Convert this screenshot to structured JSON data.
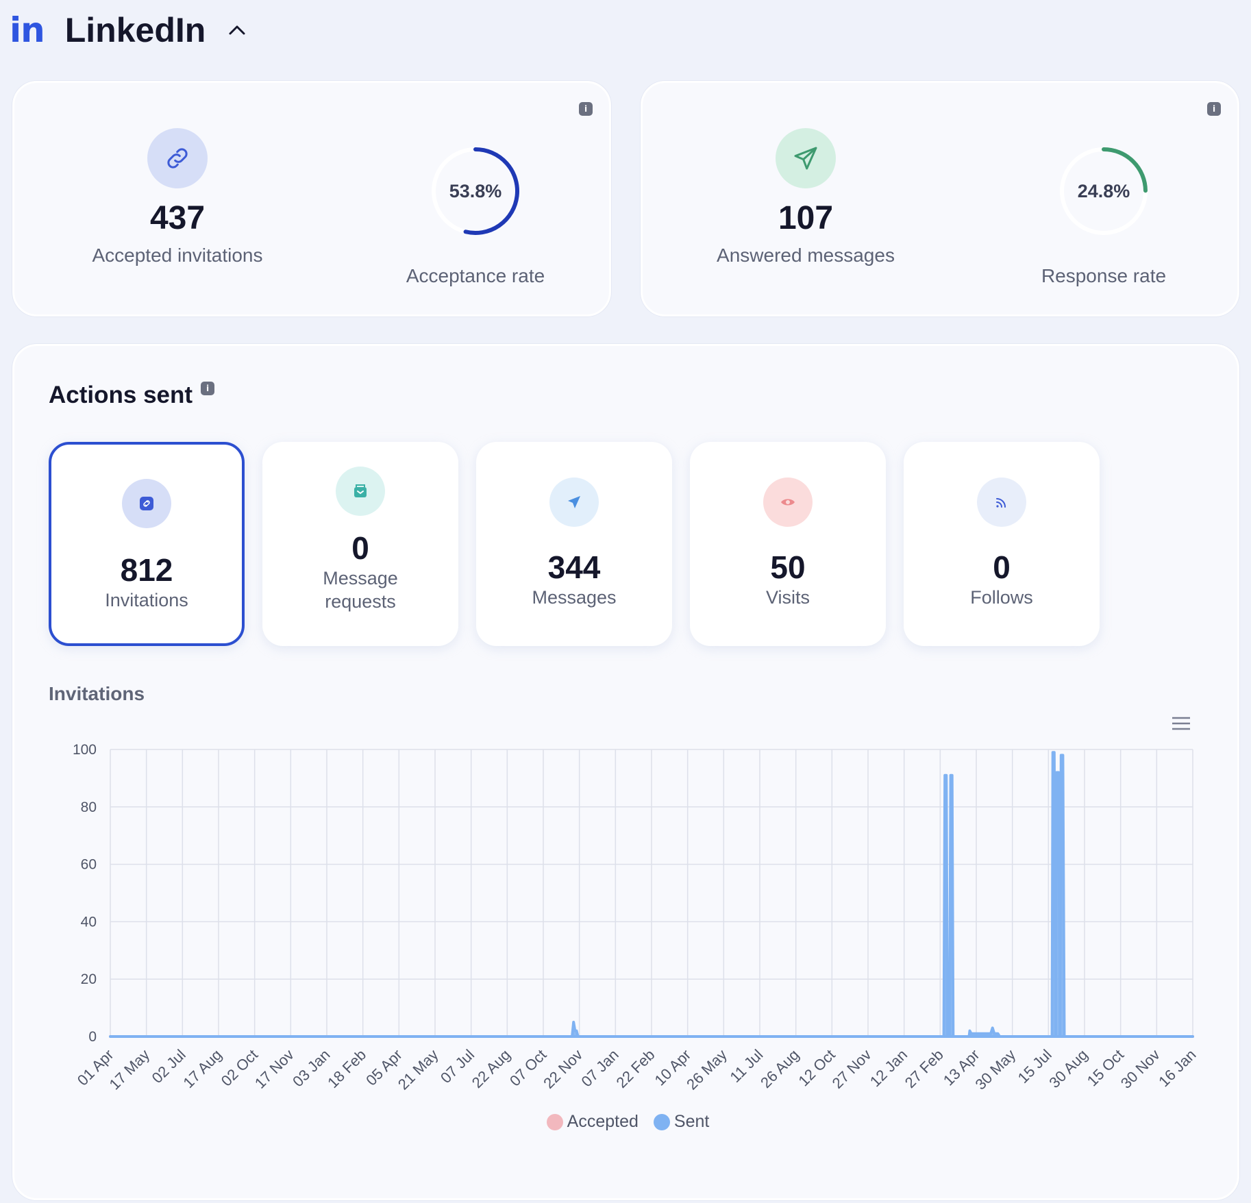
{
  "header": {
    "logo_text": "in",
    "title": "LinkedIn"
  },
  "summary": {
    "accepted_invitations": {
      "value": "437",
      "label": "Accepted invitations",
      "icon": "link-icon"
    },
    "acceptance_rate": {
      "value_text": "53.8%",
      "percent": 53.8,
      "label": "Acceptance rate",
      "color": "#1f39b5"
    },
    "answered_messages": {
      "value": "107",
      "label": "Answered messages",
      "icon": "send-icon"
    },
    "response_rate": {
      "value_text": "24.8%",
      "percent": 24.8,
      "label": "Response rate",
      "color": "#3e9a6f"
    },
    "info_glyph": "i"
  },
  "actions": {
    "title": "Actions sent",
    "tiles": [
      {
        "value": "812",
        "label": "Invitations",
        "icon": "link-icon",
        "selected": true
      },
      {
        "value": "0",
        "label_line1": "Message",
        "label_line2": "requests",
        "icon": "inbox-icon"
      },
      {
        "value": "344",
        "label": "Messages",
        "icon": "send-icon"
      },
      {
        "value": "50",
        "label": "Visits",
        "icon": "eye-icon"
      },
      {
        "value": "0",
        "label": "Follows",
        "icon": "rss-icon"
      }
    ]
  },
  "chart_data": {
    "type": "area",
    "title": "Invitations",
    "ylim": [
      0,
      100
    ],
    "y_ticks": [
      0,
      20,
      40,
      60,
      80,
      100
    ],
    "x_tick_labels": [
      "01 Apr",
      "17 May",
      "02 Jul",
      "17 Aug",
      "02 Oct",
      "17 Nov",
      "03 Jan",
      "18 Feb",
      "05 Apr",
      "21 May",
      "07 Jul",
      "22 Aug",
      "07 Oct",
      "22 Nov",
      "07 Jan",
      "22 Feb",
      "10 Apr",
      "26 May",
      "11 Jul",
      "26 Aug",
      "12 Oct",
      "27 Nov",
      "12 Jan",
      "27 Feb",
      "13 Apr",
      "30 May",
      "15 Jul",
      "30 Aug",
      "15 Oct",
      "30 Nov",
      "16 Jan"
    ],
    "grid": true,
    "legend_position": "bottom-center",
    "series": [
      {
        "name": "Accepted",
        "color": "#f2b8be",
        "points": [
          [
            0,
            0
          ],
          [
            30,
            0
          ]
        ]
      },
      {
        "name": "Sent",
        "color": "#7fb2f2",
        "points": [
          [
            0,
            0
          ],
          [
            12.8,
            0
          ],
          [
            12.84,
            5
          ],
          [
            12.88,
            2
          ],
          [
            12.92,
            2
          ],
          [
            12.96,
            0
          ],
          [
            23.1,
            0
          ],
          [
            23.13,
            91
          ],
          [
            23.17,
            91
          ],
          [
            23.2,
            0
          ],
          [
            23.26,
            0
          ],
          [
            23.29,
            91
          ],
          [
            23.33,
            91
          ],
          [
            23.36,
            0
          ],
          [
            23.8,
            0
          ],
          [
            23.82,
            2
          ],
          [
            23.86,
            1
          ],
          [
            24.0,
            1
          ],
          [
            24.4,
            1
          ],
          [
            24.45,
            3
          ],
          [
            24.5,
            1
          ],
          [
            24.6,
            1
          ],
          [
            24.65,
            0
          ],
          [
            26.1,
            0
          ],
          [
            26.12,
            99
          ],
          [
            26.16,
            99
          ],
          [
            26.2,
            0
          ],
          [
            26.23,
            92
          ],
          [
            26.28,
            92
          ],
          [
            26.32,
            0
          ],
          [
            26.35,
            98
          ],
          [
            26.4,
            98
          ],
          [
            26.44,
            0
          ],
          [
            30,
            0
          ]
        ]
      }
    ]
  },
  "legend": {
    "accepted": "Accepted",
    "sent": "Sent"
  }
}
